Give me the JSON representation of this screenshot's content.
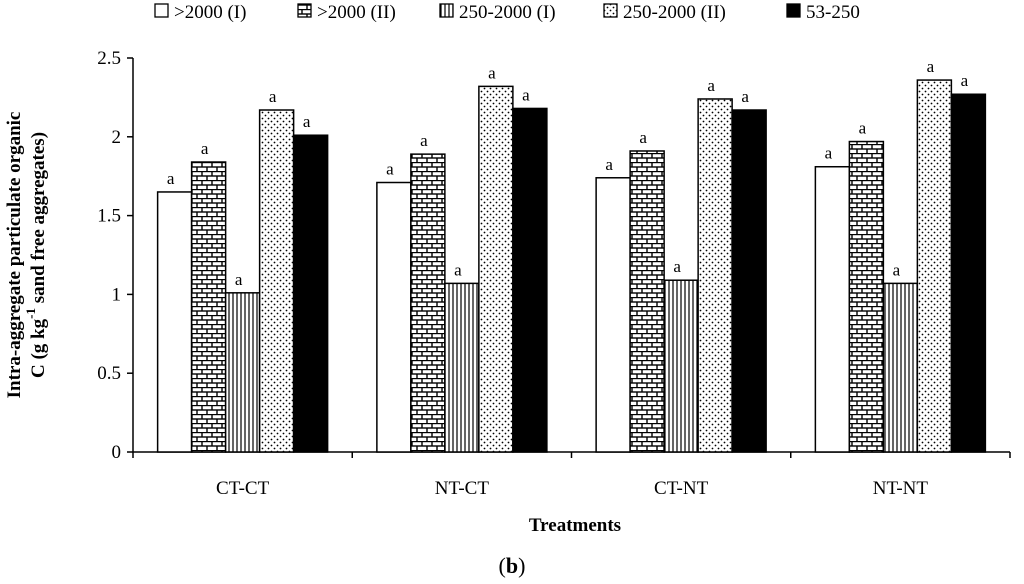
{
  "chart_data": {
    "type": "bar",
    "categories": [
      "CT-CT",
      "NT-CT",
      "CT-NT",
      "NT-NT"
    ],
    "series": [
      {
        "name": ">2000 (I)",
        "pattern": "white",
        "values": [
          1.65,
          1.71,
          1.74,
          1.81
        ],
        "labels": [
          "a",
          "a",
          "a",
          "a"
        ]
      },
      {
        "name": ">2000 (II)",
        "pattern": "brick",
        "values": [
          1.84,
          1.89,
          1.91,
          1.97
        ],
        "labels": [
          "a",
          "a",
          "a",
          "a"
        ]
      },
      {
        "name": "250-2000 (I)",
        "pattern": "vlines",
        "values": [
          1.01,
          1.07,
          1.09,
          1.07
        ],
        "labels": [
          "a",
          "a",
          "a",
          "a"
        ]
      },
      {
        "name": "250-2000 (II)",
        "pattern": "dots",
        "values": [
          2.17,
          2.32,
          2.24,
          2.36
        ],
        "labels": [
          "a",
          "a",
          "a",
          "a"
        ]
      },
      {
        "name": "53-250",
        "pattern": "black",
        "values": [
          2.01,
          2.18,
          2.17,
          2.27
        ],
        "labels": [
          "a",
          "a",
          "a",
          "a"
        ]
      }
    ],
    "yticks": [
      "0",
      "0.5",
      "1",
      "1.5",
      "2",
      "2.5"
    ],
    "ylim": [
      0,
      2.5
    ],
    "xlabel": "Treatments",
    "ylabel_line1": "Intra-aggregate particulate organic",
    "ylabel_line2_pre": "C (g kg",
    "ylabel_sup": "-1",
    "ylabel_line2_post": " sand free aggregates)",
    "panel_label": "(b)",
    "legend_position": "top"
  }
}
